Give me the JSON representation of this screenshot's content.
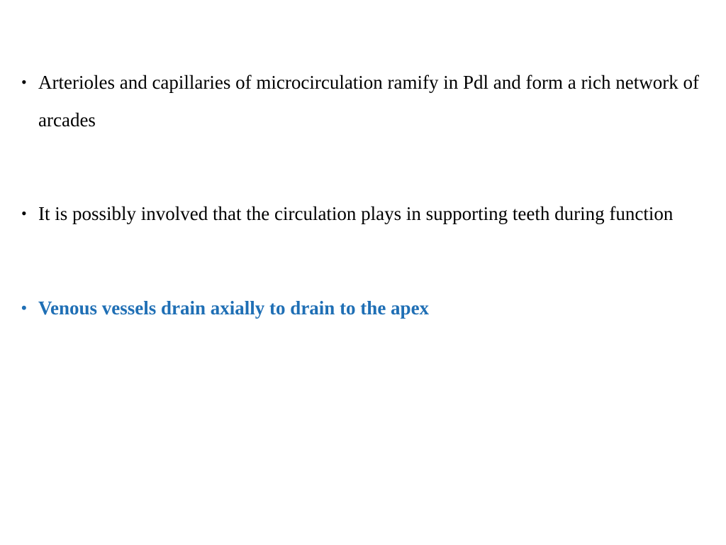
{
  "slide": {
    "bullets": [
      {
        "text": "Arterioles and capillaries of microcirculation ramify in   Pdl and form a rich network of arcades",
        "color": "#000000",
        "bold": false,
        "bullet_color": "#000000"
      },
      {
        "text": "It is possibly involved that the circulation plays in supporting teeth during function",
        "color": "#000000",
        "bold": false,
        "bullet_color": "#000000"
      },
      {
        "text": "Venous vessels drain axially to drain to the apex",
        "color": "#1f6fb5",
        "bold": true,
        "bullet_color": "#1f6fb5"
      }
    ]
  },
  "styling": {
    "background_color": "#ffffff",
    "font_family": "Times New Roman",
    "base_font_size": 27,
    "line_height": 1.95,
    "bullet_spacing": 80
  }
}
